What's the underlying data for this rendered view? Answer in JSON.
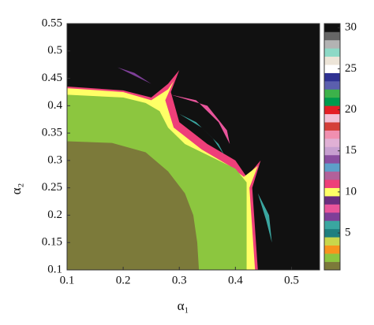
{
  "chart_data": {
    "type": "region-map",
    "xlabel": "α₁",
    "ylabel": "α₂",
    "xlim": [
      0.1,
      0.55
    ],
    "ylim": [
      0.1,
      0.55
    ],
    "xticks": [
      0.1,
      0.2,
      0.3,
      0.4,
      0.5
    ],
    "yticks": [
      0.1,
      0.15,
      0.2,
      0.25,
      0.3,
      0.35,
      0.4,
      0.45,
      0.5,
      0.55
    ],
    "background_value": 30,
    "regions": [
      {
        "value": 11,
        "points": [
          [
            0.1,
            0.435
          ],
          [
            0.2,
            0.428
          ],
          [
            0.25,
            0.415
          ],
          [
            0.28,
            0.44
          ],
          [
            0.3,
            0.465
          ],
          [
            0.285,
            0.425
          ],
          [
            0.3,
            0.37
          ],
          [
            0.35,
            0.33
          ],
          [
            0.4,
            0.3
          ],
          [
            0.42,
            0.27
          ],
          [
            0.445,
            0.3
          ],
          [
            0.43,
            0.25
          ],
          [
            0.44,
            0.1
          ],
          [
            0.1,
            0.1
          ]
        ]
      },
      {
        "value": 10,
        "points": [
          [
            0.1,
            0.432
          ],
          [
            0.2,
            0.425
          ],
          [
            0.25,
            0.41
          ],
          [
            0.28,
            0.43
          ],
          [
            0.29,
            0.445
          ],
          [
            0.275,
            0.41
          ],
          [
            0.29,
            0.36
          ],
          [
            0.34,
            0.32
          ],
          [
            0.39,
            0.29
          ],
          [
            0.415,
            0.27
          ],
          [
            0.44,
            0.29
          ],
          [
            0.425,
            0.25
          ],
          [
            0.435,
            0.1
          ],
          [
            0.1,
            0.1
          ]
        ]
      },
      {
        "value": 2,
        "points": [
          [
            0.1,
            0.42
          ],
          [
            0.2,
            0.415
          ],
          [
            0.24,
            0.405
          ],
          [
            0.265,
            0.39
          ],
          [
            0.28,
            0.36
          ],
          [
            0.31,
            0.33
          ],
          [
            0.36,
            0.305
          ],
          [
            0.4,
            0.285
          ],
          [
            0.42,
            0.26
          ],
          [
            0.42,
            0.1
          ],
          [
            0.1,
            0.1
          ]
        ]
      },
      {
        "value": 1,
        "points": [
          [
            0.1,
            0.335
          ],
          [
            0.18,
            0.332
          ],
          [
            0.24,
            0.315
          ],
          [
            0.28,
            0.28
          ],
          [
            0.31,
            0.24
          ],
          [
            0.325,
            0.2
          ],
          [
            0.332,
            0.15
          ],
          [
            0.335,
            0.1
          ],
          [
            0.1,
            0.1
          ]
        ]
      },
      {
        "value": 6,
        "points": [
          [
            0.3,
            0.385
          ],
          [
            0.33,
            0.37
          ],
          [
            0.36,
            0.34
          ],
          [
            0.38,
            0.31
          ],
          [
            0.37,
            0.33
          ],
          [
            0.34,
            0.36
          ]
        ]
      },
      {
        "value": 8,
        "points": [
          [
            0.285,
            0.42
          ],
          [
            0.33,
            0.41
          ],
          [
            0.37,
            0.37
          ],
          [
            0.39,
            0.33
          ],
          [
            0.385,
            0.355
          ],
          [
            0.35,
            0.4
          ]
        ]
      },
      {
        "value": 7,
        "points": [
          [
            0.19,
            0.47
          ],
          [
            0.22,
            0.455
          ],
          [
            0.25,
            0.44
          ],
          [
            0.22,
            0.46
          ]
        ]
      },
      {
        "value": 6,
        "points": [
          [
            0.44,
            0.24
          ],
          [
            0.46,
            0.2
          ],
          [
            0.465,
            0.15
          ],
          [
            0.455,
            0.19
          ]
        ]
      }
    ],
    "colorbar": {
      "values": [
        1,
        2,
        3,
        4,
        5,
        6,
        7,
        8,
        9,
        10,
        11,
        12,
        13,
        14,
        15,
        16,
        17,
        18,
        19,
        20,
        21,
        22,
        23,
        24,
        25,
        26,
        27,
        28,
        29,
        30
      ],
      "colors": [
        "#7c7a3a",
        "#8cc63f",
        "#f7941d",
        "#c9d64b",
        "#1f7f7f",
        "#3aa6a0",
        "#7e3f98",
        "#e8559b",
        "#6b2d7f",
        "#ffff66",
        "#ee3f79",
        "#b2619a",
        "#5d9fc9",
        "#8a4ea0",
        "#c79fd0",
        "#e0b0d5",
        "#f08fb0",
        "#d43f3a",
        "#f2c1d8",
        "#e41e26",
        "#009a4e",
        "#3cb24a",
        "#5b5fae",
        "#2e3192",
        "#ffffff",
        "#ede5d8",
        "#8dd9c6",
        "#b3b3b3",
        "#666666",
        "#111111"
      ],
      "ticks": [
        5,
        10,
        15,
        20,
        25,
        30
      ]
    }
  }
}
